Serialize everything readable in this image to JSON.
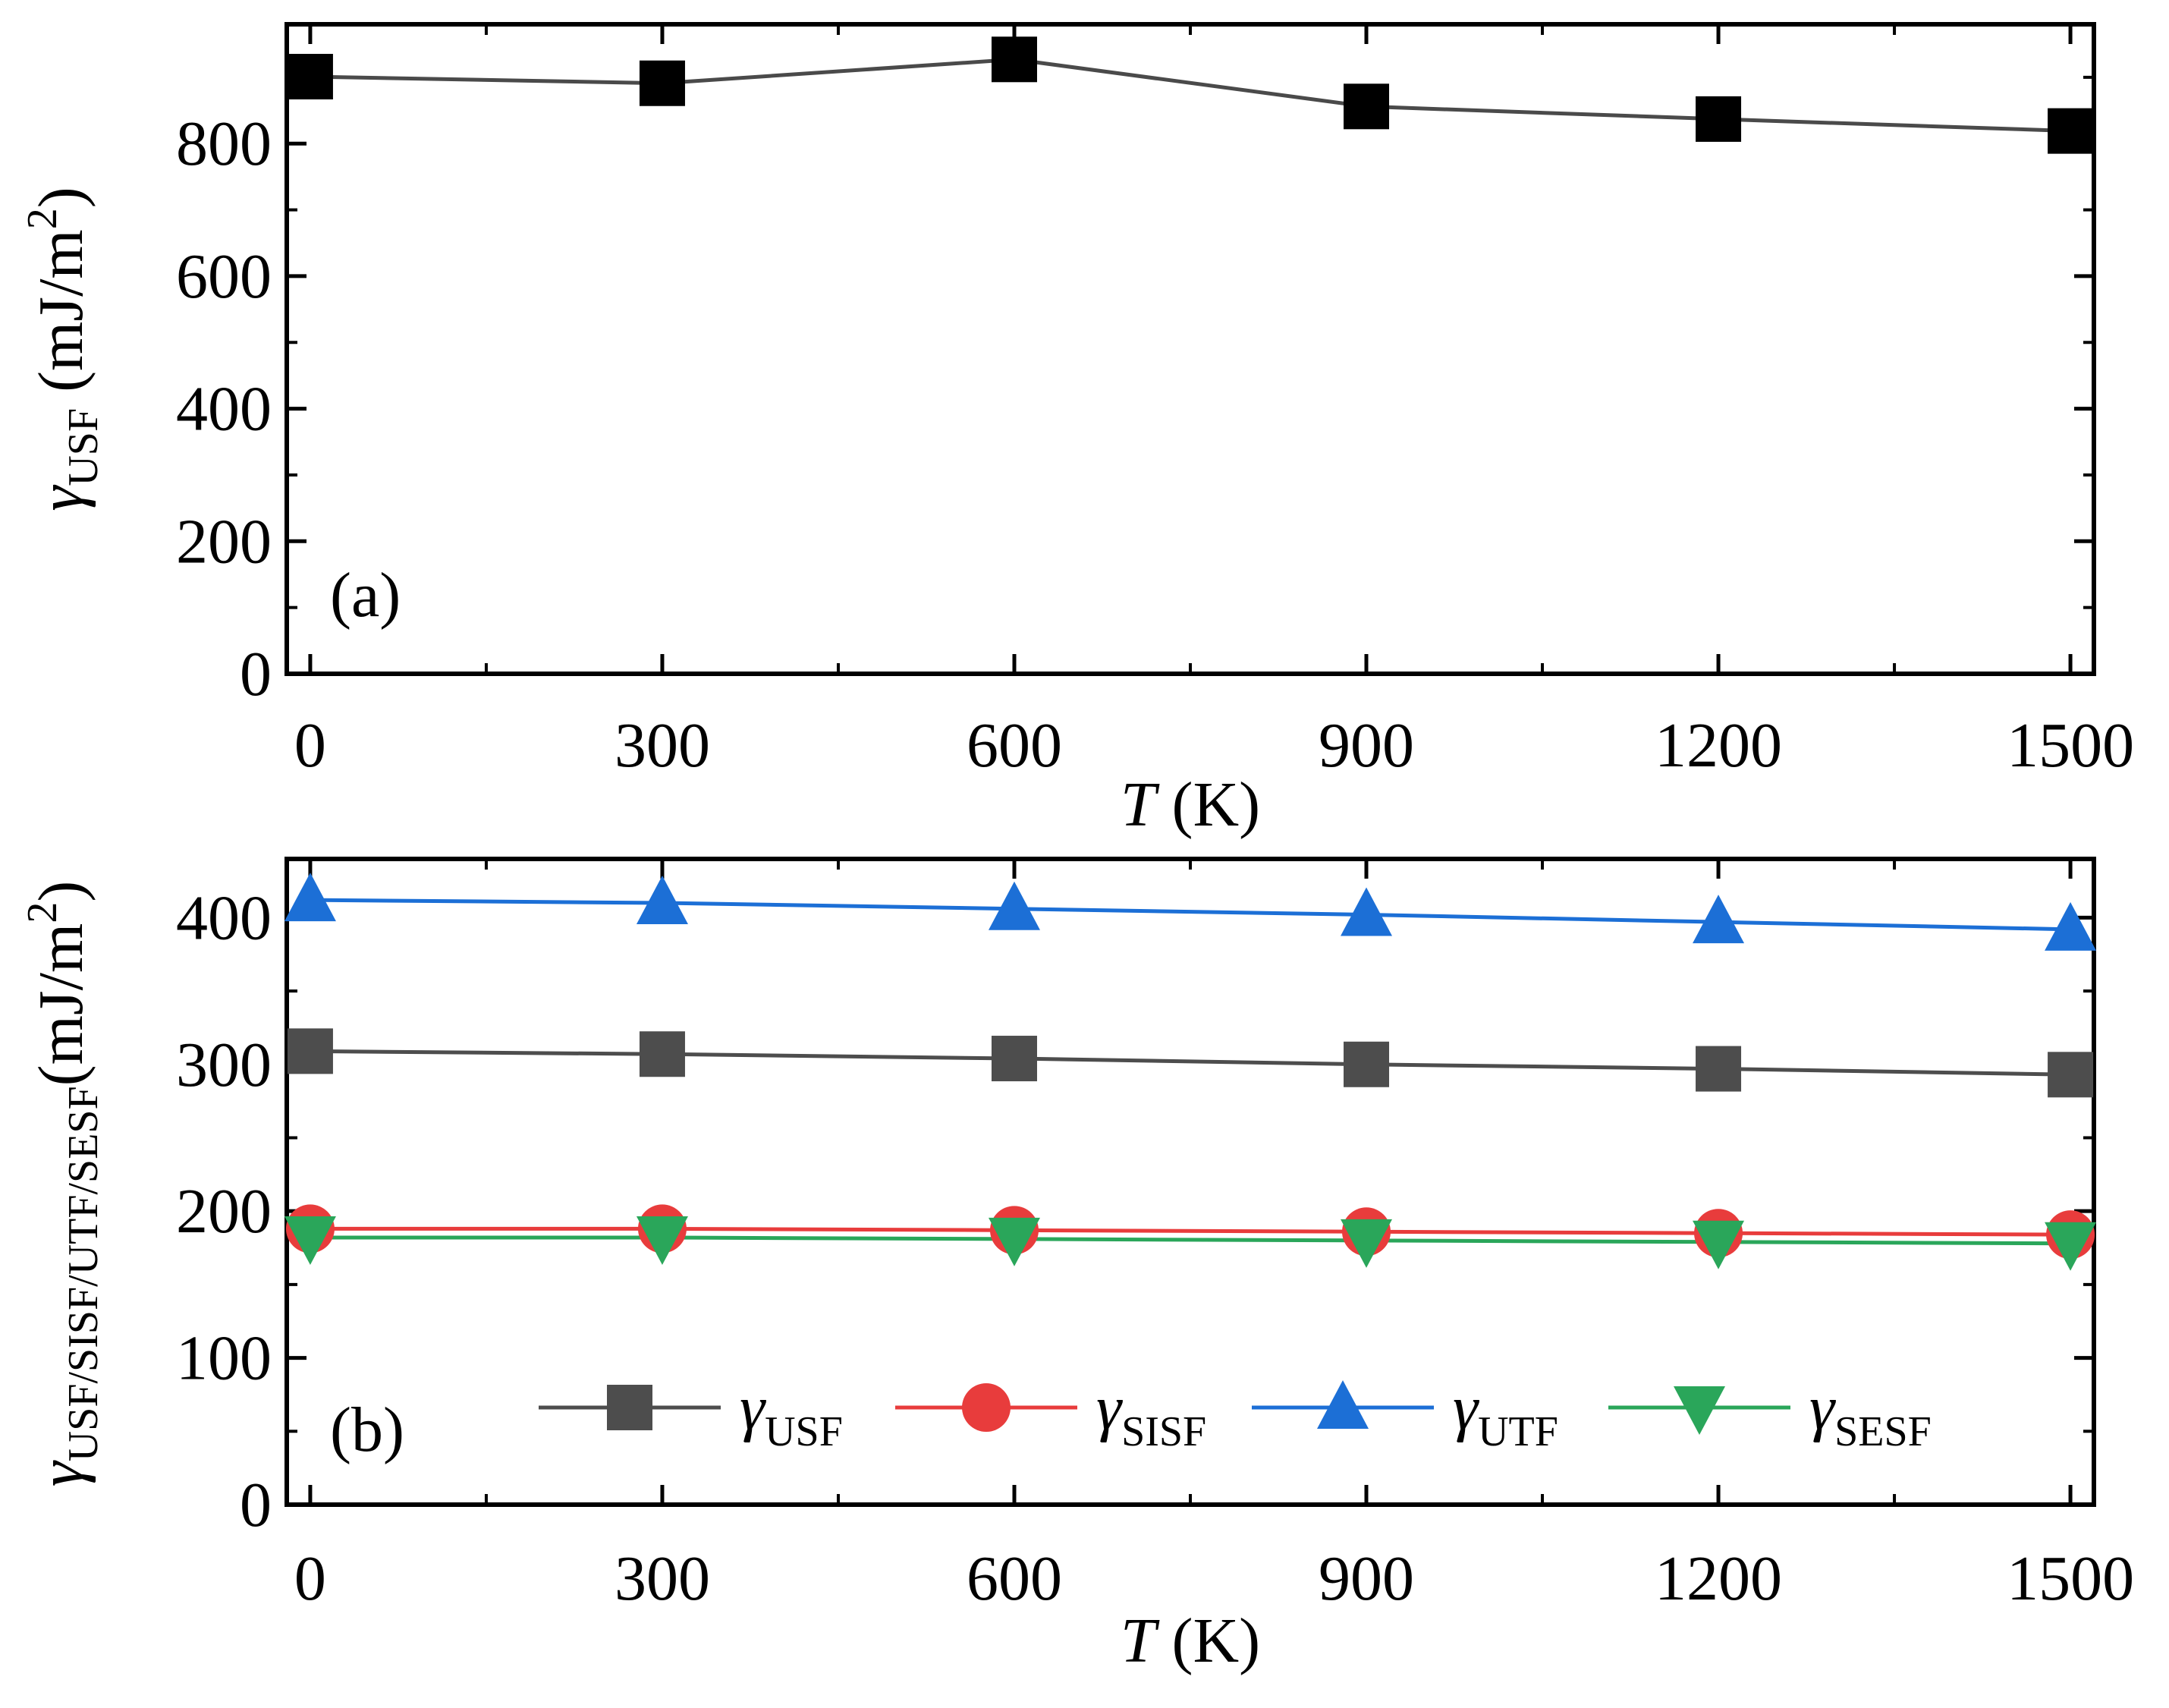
{
  "figure": {
    "x_axis_italic": "T",
    "x_axis_unit": " (K)",
    "gamma_symbol": "γ"
  },
  "chart_data": [
    {
      "type": "line",
      "panel_label": "(a)",
      "x": [
        0,
        300,
        600,
        900,
        1200,
        1500
      ],
      "series": [
        {
          "name": "USF",
          "color": "#000000",
          "line_color": "#4a4a4a",
          "marker": "square",
          "values": [
            901,
            891,
            927,
            856,
            837,
            819
          ]
        }
      ],
      "xlim": [
        -20,
        1520
      ],
      "ylim": [
        0,
        980
      ],
      "xticks": [
        0,
        300,
        600,
        900,
        1200,
        1500
      ],
      "yticks": [
        0,
        200,
        400,
        600,
        800
      ],
      "xlabel": "T (K)",
      "ylabel_sub": "USF",
      "ylabel_unit": " (mJ/m",
      "ylabel_sup": "2",
      "ylabel_close": ")",
      "legend": null
    },
    {
      "type": "line",
      "panel_label": "(b)",
      "x": [
        0,
        300,
        600,
        900,
        1200,
        1500
      ],
      "series": [
        {
          "name": "USF",
          "color": "#4d4d4d",
          "line_color": "#4d4d4d",
          "marker": "square",
          "values": [
            309,
            307,
            304,
            300,
            297,
            293
          ]
        },
        {
          "name": "SISF",
          "color": "#e83c3c",
          "line_color": "#e83c3c",
          "marker": "circle",
          "values": [
            188,
            188,
            187,
            186,
            185,
            184
          ]
        },
        {
          "name": "UTF",
          "color": "#1c6fd6",
          "line_color": "#1c6fd6",
          "marker": "triangle-up",
          "values": [
            412,
            410,
            406,
            402,
            397,
            392
          ]
        },
        {
          "name": "SESF",
          "color": "#2aa65a",
          "line_color": "#2aa65a",
          "marker": "triangle-down",
          "values": [
            182,
            182,
            181,
            180,
            179,
            178
          ]
        }
      ],
      "xlim": [
        -20,
        1520
      ],
      "ylim": [
        0,
        440
      ],
      "xticks": [
        0,
        300,
        600,
        900,
        1200,
        1500
      ],
      "yticks": [
        0,
        100,
        200,
        300,
        400
      ],
      "xlabel": "T (K)",
      "ylabel_sub": "USF/SISF/UTF/SESF",
      "ylabel_unit": "(mJ/m",
      "ylabel_sup": "2",
      "ylabel_close": ")",
      "legend": "bottom"
    }
  ]
}
